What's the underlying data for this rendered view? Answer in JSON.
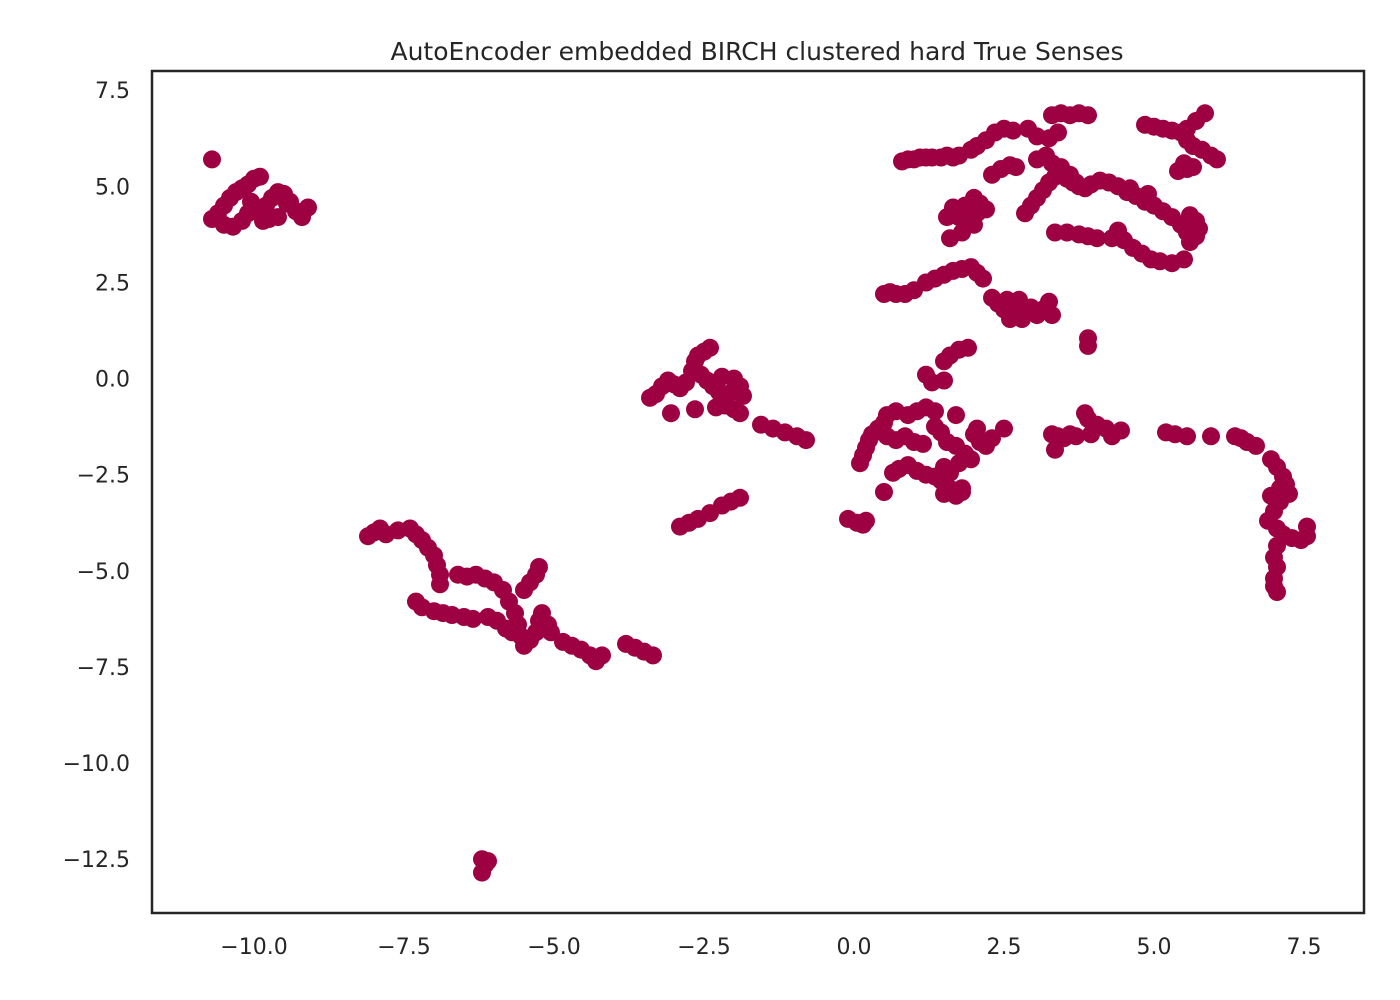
{
  "chart_data": {
    "type": "scatter",
    "title": "AutoEncoder embedded BIRCH clustered hard True Senses",
    "xlabel": "",
    "ylabel": "",
    "xlim": [
      -11.7,
      8.5
    ],
    "ylim": [
      -13.9,
      8.0
    ],
    "grid": false,
    "legend": "none",
    "point_color": "#9e0142",
    "x_ticks": [
      -10.0,
      -7.5,
      -5.0,
      -2.5,
      0.0,
      2.5,
      5.0,
      7.5
    ],
    "x_tick_labels": [
      "−10.0",
      "−7.5",
      "−5.0",
      "−2.5",
      "0.0",
      "2.5",
      "5.0",
      "7.5"
    ],
    "y_ticks": [
      7.5,
      5.0,
      2.5,
      0.0,
      -2.5,
      -5.0,
      -7.5,
      -10.0,
      -12.5
    ],
    "y_tick_labels": [
      "7.5",
      "5.0",
      "2.5",
      "0.0",
      "−2.5",
      "−5.0",
      "−7.5",
      "−10.0",
      "−12.5"
    ],
    "points": [
      [
        -10.7,
        5.7
      ],
      [
        -10.7,
        4.15
      ],
      [
        -10.6,
        4.3
      ],
      [
        -10.5,
        4.5
      ],
      [
        -10.4,
        4.7
      ],
      [
        -10.3,
        4.85
      ],
      [
        -10.2,
        4.95
      ],
      [
        -10.1,
        5.05
      ],
      [
        -10.0,
        5.2
      ],
      [
        -9.9,
        5.25
      ],
      [
        -10.5,
        4.0
      ],
      [
        -10.35,
        3.95
      ],
      [
        -10.2,
        4.1
      ],
      [
        -10.1,
        4.3
      ],
      [
        -9.95,
        4.4
      ],
      [
        -9.8,
        4.5
      ],
      [
        -9.7,
        4.7
      ],
      [
        -9.6,
        4.85
      ],
      [
        -9.5,
        4.8
      ],
      [
        -9.4,
        4.6
      ],
      [
        -9.3,
        4.35
      ],
      [
        -9.2,
        4.2
      ],
      [
        -9.1,
        4.45
      ],
      [
        -9.75,
        4.15
      ],
      [
        -9.6,
        4.2
      ],
      [
        -9.85,
        4.1
      ],
      [
        -10.05,
        4.6
      ],
      [
        -9.45,
        4.55
      ],
      [
        -8.1,
        -4.1
      ],
      [
        -8.0,
        -4.0
      ],
      [
        -7.9,
        -3.9
      ],
      [
        -7.8,
        -4.05
      ],
      [
        -7.6,
        -3.95
      ],
      [
        -7.4,
        -3.9
      ],
      [
        -7.3,
        -4.05
      ],
      [
        -7.2,
        -4.2
      ],
      [
        -7.1,
        -4.4
      ],
      [
        -7.0,
        -4.6
      ],
      [
        -6.95,
        -4.85
      ],
      [
        -6.9,
        -5.1
      ],
      [
        -6.9,
        -5.35
      ],
      [
        -6.6,
        -5.1
      ],
      [
        -6.45,
        -5.15
      ],
      [
        -6.3,
        -5.1
      ],
      [
        -6.15,
        -5.2
      ],
      [
        -6.0,
        -5.3
      ],
      [
        -5.85,
        -5.5
      ],
      [
        -5.75,
        -5.8
      ],
      [
        -5.65,
        -6.1
      ],
      [
        -5.6,
        -6.4
      ],
      [
        -5.55,
        -6.7
      ],
      [
        -5.5,
        -6.95
      ],
      [
        -5.4,
        -6.8
      ],
      [
        -5.3,
        -6.6
      ],
      [
        -5.25,
        -6.3
      ],
      [
        -5.2,
        -6.1
      ],
      [
        -5.1,
        -6.4
      ],
      [
        -5.05,
        -6.6
      ],
      [
        -5.5,
        -5.5
      ],
      [
        -5.4,
        -5.3
      ],
      [
        -5.3,
        -5.1
      ],
      [
        -5.25,
        -4.9
      ],
      [
        -7.3,
        -5.8
      ],
      [
        -7.2,
        -5.95
      ],
      [
        -7.0,
        -6.05
      ],
      [
        -6.85,
        -6.1
      ],
      [
        -6.7,
        -6.15
      ],
      [
        -6.5,
        -6.2
      ],
      [
        -6.35,
        -6.25
      ],
      [
        -6.1,
        -6.2
      ],
      [
        -5.95,
        -6.3
      ],
      [
        -5.8,
        -6.5
      ],
      [
        -5.7,
        -6.6
      ],
      [
        -4.85,
        -6.85
      ],
      [
        -4.7,
        -6.95
      ],
      [
        -4.55,
        -7.05
      ],
      [
        -4.4,
        -7.2
      ],
      [
        -4.3,
        -7.35
      ],
      [
        -4.2,
        -7.2
      ],
      [
        -3.8,
        -6.9
      ],
      [
        -3.65,
        -7.0
      ],
      [
        -3.5,
        -7.1
      ],
      [
        -3.35,
        -7.2
      ],
      [
        -6.2,
        -12.5
      ],
      [
        -6.15,
        -12.65
      ],
      [
        -6.2,
        -12.85
      ],
      [
        -6.1,
        -12.55
      ],
      [
        -3.4,
        -0.5
      ],
      [
        -3.3,
        -0.4
      ],
      [
        -3.2,
        -0.2
      ],
      [
        -3.1,
        -0.05
      ],
      [
        -3.0,
        -0.15
      ],
      [
        -2.9,
        -0.25
      ],
      [
        -2.8,
        -0.1
      ],
      [
        -2.7,
        0.2
      ],
      [
        -2.65,
        0.45
      ],
      [
        -2.6,
        0.6
      ],
      [
        -2.5,
        0.7
      ],
      [
        -2.4,
        0.8
      ],
      [
        -2.55,
        0.1
      ],
      [
        -2.45,
        -0.05
      ],
      [
        -2.35,
        -0.2
      ],
      [
        -2.25,
        -0.35
      ],
      [
        -2.1,
        -0.4
      ],
      [
        -2.0,
        -0.3
      ],
      [
        -1.9,
        -0.2
      ],
      [
        -1.85,
        -0.45
      ],
      [
        -2.2,
        0.05
      ],
      [
        -2.0,
        0.0
      ],
      [
        -2.3,
        -0.75
      ],
      [
        -2.15,
        -0.7
      ],
      [
        -2.0,
        -0.8
      ],
      [
        -1.9,
        -0.9
      ],
      [
        -3.05,
        -0.9
      ],
      [
        -2.65,
        -0.8
      ],
      [
        -1.55,
        -1.2
      ],
      [
        -1.35,
        -1.3
      ],
      [
        -1.15,
        -1.4
      ],
      [
        -0.95,
        -1.5
      ],
      [
        -0.8,
        -1.6
      ],
      [
        -2.9,
        -3.85
      ],
      [
        -2.75,
        -3.75
      ],
      [
        -2.6,
        -3.65
      ],
      [
        -2.4,
        -3.5
      ],
      [
        -2.2,
        -3.3
      ],
      [
        -2.05,
        -3.2
      ],
      [
        -1.9,
        -3.1
      ],
      [
        -0.1,
        -3.65
      ],
      [
        0.05,
        -3.75
      ],
      [
        0.15,
        -3.8
      ],
      [
        0.2,
        -3.7
      ],
      [
        0.1,
        -2.2
      ],
      [
        0.15,
        -2.0
      ],
      [
        0.2,
        -1.8
      ],
      [
        0.25,
        -1.6
      ],
      [
        0.3,
        -1.45
      ],
      [
        0.4,
        -1.3
      ],
      [
        0.5,
        -1.15
      ],
      [
        0.55,
        -0.95
      ],
      [
        0.7,
        -0.85
      ],
      [
        0.9,
        -0.95
      ],
      [
        1.05,
        -0.85
      ],
      [
        1.2,
        -0.75
      ],
      [
        1.35,
        -0.85
      ],
      [
        0.55,
        -1.5
      ],
      [
        0.7,
        -1.6
      ],
      [
        0.85,
        -1.5
      ],
      [
        1.0,
        -1.65
      ],
      [
        1.15,
        -1.7
      ],
      [
        0.65,
        -2.45
      ],
      [
        0.75,
        -2.35
      ],
      [
        0.9,
        -2.25
      ],
      [
        1.05,
        -2.4
      ],
      [
        1.2,
        -2.5
      ],
      [
        1.35,
        -2.55
      ],
      [
        1.45,
        -2.65
      ],
      [
        1.55,
        -2.8
      ],
      [
        1.65,
        -2.9
      ],
      [
        1.8,
        -2.95
      ],
      [
        1.5,
        -2.3
      ],
      [
        1.6,
        -2.45
      ],
      [
        0.5,
        -2.95
      ],
      [
        1.5,
        -3.0
      ],
      [
        1.7,
        -3.05
      ],
      [
        1.8,
        -2.85
      ],
      [
        1.35,
        -1.25
      ],
      [
        1.45,
        -1.4
      ],
      [
        1.55,
        -1.65
      ],
      [
        1.7,
        -1.75
      ],
      [
        1.85,
        -1.95
      ],
      [
        1.95,
        -2.1
      ],
      [
        1.75,
        -2.2
      ],
      [
        1.7,
        -0.95
      ],
      [
        2.0,
        -1.45
      ],
      [
        2.1,
        -1.65
      ],
      [
        2.2,
        -1.75
      ],
      [
        2.3,
        -1.55
      ],
      [
        2.5,
        -1.3
      ],
      [
        2.05,
        -1.3
      ],
      [
        1.3,
        -0.1
      ],
      [
        1.2,
        0.1
      ],
      [
        1.5,
        0.45
      ],
      [
        1.6,
        0.6
      ],
      [
        1.75,
        0.75
      ],
      [
        1.9,
        0.8
      ],
      [
        1.5,
        -0.05
      ],
      [
        3.3,
        -1.45
      ],
      [
        3.4,
        -1.5
      ],
      [
        3.5,
        -1.55
      ],
      [
        3.6,
        -1.45
      ],
      [
        3.7,
        -1.5
      ],
      [
        3.35,
        -1.85
      ],
      [
        3.95,
        -1.45
      ],
      [
        4.3,
        -1.5
      ],
      [
        3.85,
        -0.9
      ],
      [
        3.9,
        -1.05
      ],
      [
        4.05,
        -1.2
      ],
      [
        4.2,
        -1.3
      ],
      [
        4.45,
        -1.35
      ],
      [
        5.2,
        -1.4
      ],
      [
        5.35,
        -1.45
      ],
      [
        5.55,
        -1.5
      ],
      [
        5.95,
        -1.5
      ],
      [
        6.35,
        -1.5
      ],
      [
        6.45,
        -1.55
      ],
      [
        6.55,
        -1.65
      ],
      [
        6.7,
        -1.75
      ],
      [
        6.95,
        -2.1
      ],
      [
        7.05,
        -2.3
      ],
      [
        7.15,
        -2.55
      ],
      [
        7.2,
        -2.75
      ],
      [
        7.25,
        -3.0
      ],
      [
        7.1,
        -3.2
      ],
      [
        7.0,
        -3.45
      ],
      [
        6.9,
        -3.7
      ],
      [
        7.05,
        -3.9
      ],
      [
        7.15,
        -4.05
      ],
      [
        7.3,
        -4.15
      ],
      [
        7.45,
        -4.2
      ],
      [
        7.55,
        -4.1
      ],
      [
        7.55,
        -3.85
      ],
      [
        7.05,
        -4.35
      ],
      [
        7.0,
        -4.65
      ],
      [
        7.05,
        -4.9
      ],
      [
        7.0,
        -5.2
      ],
      [
        7.0,
        -5.4
      ],
      [
        7.05,
        -5.55
      ],
      [
        6.95,
        -3.05
      ],
      [
        7.1,
        -2.85
      ],
      [
        0.5,
        2.2
      ],
      [
        0.6,
        2.25
      ],
      [
        0.7,
        2.2
      ],
      [
        0.85,
        2.2
      ],
      [
        1.0,
        2.3
      ],
      [
        1.2,
        2.5
      ],
      [
        1.35,
        2.6
      ],
      [
        1.5,
        2.7
      ],
      [
        1.65,
        2.8
      ],
      [
        1.8,
        2.85
      ],
      [
        1.95,
        2.9
      ],
      [
        2.05,
        2.75
      ],
      [
        2.15,
        2.6
      ],
      [
        2.3,
        2.1
      ],
      [
        2.4,
        1.95
      ],
      [
        2.5,
        1.8
      ],
      [
        2.65,
        1.7
      ],
      [
        2.8,
        1.75
      ],
      [
        2.95,
        1.85
      ],
      [
        3.05,
        1.65
      ],
      [
        3.15,
        1.8
      ],
      [
        2.6,
        1.55
      ],
      [
        2.8,
        1.55
      ],
      [
        3.25,
        2.0
      ],
      [
        3.3,
        1.65
      ],
      [
        2.55,
        2.05
      ],
      [
        2.75,
        2.05
      ],
      [
        3.9,
        0.85
      ],
      [
        3.9,
        1.05
      ],
      [
        0.8,
        5.65
      ],
      [
        0.9,
        5.7
      ],
      [
        1.0,
        5.7
      ],
      [
        1.1,
        5.75
      ],
      [
        1.2,
        5.75
      ],
      [
        1.3,
        5.75
      ],
      [
        1.45,
        5.75
      ],
      [
        1.55,
        5.8
      ],
      [
        1.65,
        5.75
      ],
      [
        1.75,
        5.8
      ],
      [
        1.55,
        4.2
      ],
      [
        1.7,
        4.35
      ],
      [
        1.85,
        4.5
      ],
      [
        2.0,
        4.7
      ],
      [
        2.1,
        4.55
      ],
      [
        2.2,
        4.4
      ],
      [
        2.0,
        4.0
      ],
      [
        1.8,
        3.8
      ],
      [
        1.6,
        3.65
      ],
      [
        1.95,
        5.95
      ],
      [
        2.05,
        6.05
      ],
      [
        2.2,
        6.2
      ],
      [
        2.35,
        6.4
      ],
      [
        2.5,
        6.5
      ],
      [
        2.65,
        6.45
      ],
      [
        2.3,
        5.3
      ],
      [
        2.45,
        5.45
      ],
      [
        2.6,
        5.55
      ],
      [
        2.7,
        5.5
      ],
      [
        2.85,
        4.3
      ],
      [
        2.95,
        4.5
      ],
      [
        3.05,
        4.7
      ],
      [
        3.15,
        4.9
      ],
      [
        3.25,
        5.1
      ],
      [
        3.35,
        5.25
      ],
      [
        3.45,
        5.3
      ],
      [
        3.55,
        5.2
      ],
      [
        3.65,
        5.1
      ],
      [
        3.75,
        5.0
      ],
      [
        3.85,
        4.95
      ],
      [
        3.95,
        5.05
      ],
      [
        4.1,
        5.15
      ],
      [
        4.25,
        5.1
      ],
      [
        4.4,
        5.0
      ],
      [
        4.55,
        4.85
      ],
      [
        4.7,
        4.75
      ],
      [
        4.85,
        4.6
      ],
      [
        5.0,
        4.5
      ],
      [
        5.15,
        4.35
      ],
      [
        5.3,
        4.2
      ],
      [
        5.45,
        4.0
      ],
      [
        5.55,
        3.8
      ],
      [
        5.6,
        3.55
      ],
      [
        5.7,
        3.7
      ],
      [
        5.75,
        3.9
      ],
      [
        5.7,
        4.1
      ],
      [
        5.6,
        4.25
      ],
      [
        4.5,
        3.6
      ],
      [
        4.65,
        3.4
      ],
      [
        4.8,
        3.25
      ],
      [
        4.95,
        3.1
      ],
      [
        5.1,
        3.05
      ],
      [
        5.3,
        3.0
      ],
      [
        5.5,
        3.1
      ],
      [
        3.35,
        3.8
      ],
      [
        3.55,
        3.8
      ],
      [
        3.75,
        3.75
      ],
      [
        3.9,
        3.7
      ],
      [
        4.05,
        3.65
      ],
      [
        4.3,
        3.65
      ],
      [
        4.4,
        3.85
      ],
      [
        2.9,
        6.5
      ],
      [
        3.05,
        6.3
      ],
      [
        3.25,
        6.25
      ],
      [
        3.4,
        6.4
      ],
      [
        3.3,
        6.85
      ],
      [
        3.45,
        6.9
      ],
      [
        3.6,
        6.85
      ],
      [
        3.75,
        6.9
      ],
      [
        3.9,
        6.85
      ],
      [
        3.2,
        5.8
      ],
      [
        3.3,
        5.6
      ],
      [
        3.45,
        5.5
      ],
      [
        3.6,
        5.3
      ],
      [
        3.7,
        5.1
      ],
      [
        3.05,
        5.7
      ],
      [
        4.85,
        6.6
      ],
      [
        5.0,
        6.55
      ],
      [
        5.15,
        6.5
      ],
      [
        5.3,
        6.45
      ],
      [
        5.45,
        6.4
      ],
      [
        5.55,
        6.5
      ],
      [
        5.7,
        6.7
      ],
      [
        5.85,
        6.9
      ],
      [
        5.55,
        6.2
      ],
      [
        5.65,
        6.05
      ],
      [
        5.8,
        5.95
      ],
      [
        5.95,
        5.8
      ],
      [
        6.05,
        5.7
      ],
      [
        5.4,
        5.4
      ],
      [
        5.55,
        5.45
      ],
      [
        5.65,
        5.5
      ],
      [
        5.5,
        5.6
      ],
      [
        1.65,
        4.45
      ],
      [
        1.75,
        4.2
      ],
      [
        1.9,
        4.25
      ],
      [
        2.05,
        4.3
      ],
      [
        4.6,
        4.95
      ],
      [
        4.9,
        4.8
      ]
    ]
  }
}
